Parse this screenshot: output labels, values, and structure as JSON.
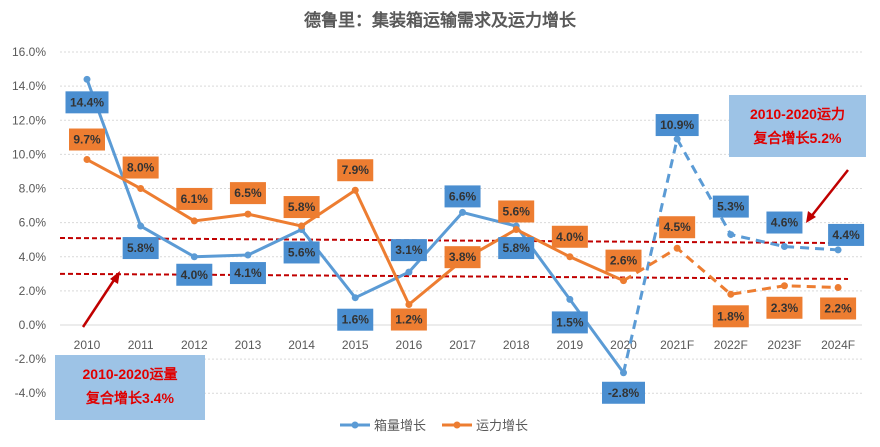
{
  "chart_data": {
    "type": "line",
    "title": "德鲁里：集装箱运输需求及运力增长",
    "categories": [
      "2010",
      "2011",
      "2012",
      "2013",
      "2014",
      "2015",
      "2016",
      "2017",
      "2018",
      "2019",
      "2020",
      "2021F",
      "2022F",
      "2023F",
      "2024F"
    ],
    "series": [
      {
        "name": "箱量增长",
        "color": "#5B9BD5",
        "label_bg": "#4A8ED0",
        "values": [
          14.4,
          5.8,
          4.0,
          4.1,
          5.6,
          1.6,
          3.1,
          6.6,
          5.8,
          1.5,
          -2.8,
          10.9,
          5.3,
          4.6,
          4.4
        ],
        "labels": [
          "14.4%",
          "5.8%",
          "4.0%",
          "4.1%",
          "5.6%",
          "1.6%",
          "3.1%",
          "6.6%",
          "5.8%",
          "1.5%",
          "-2.8%",
          "10.9%",
          "5.3%",
          "4.6%",
          "4.4%"
        ]
      },
      {
        "name": "运力增长",
        "color": "#ED7D31",
        "label_bg": "#ED7D31",
        "values": [
          9.7,
          8.0,
          6.1,
          6.5,
          5.8,
          7.9,
          1.2,
          3.8,
          5.6,
          4.0,
          2.6,
          4.5,
          1.8,
          2.3,
          2.2
        ],
        "labels": [
          "9.7%",
          "8.0%",
          "6.1%",
          "6.5%",
          "5.8%",
          "7.9%",
          "1.2%",
          "3.8%",
          "5.6%",
          "4.0%",
          "2.6%",
          "4.5%",
          "1.8%",
          "2.3%",
          "2.2%"
        ]
      }
    ],
    "forecast_from": "2020",
    "ylim": [
      -4,
      16
    ],
    "yticks": [
      "-4.0%",
      "-2.0%",
      "0.0%",
      "2.0%",
      "4.0%",
      "6.0%",
      "8.0%",
      "10.0%",
      "12.0%",
      "14.0%",
      "16.0%"
    ],
    "ytick_values": [
      -4,
      -2,
      0,
      2,
      4,
      6,
      8,
      10,
      12,
      14,
      16
    ],
    "grid": true,
    "legend_position": "bottom",
    "reference_lines": [
      {
        "from": 5.1,
        "to": 4.8,
        "color": "#C00000"
      },
      {
        "from": 3.0,
        "to": 2.7,
        "color": "#C00000"
      }
    ],
    "annotations": [
      {
        "lines": [
          "2010-2020运力",
          "复合增长5.2%"
        ],
        "bg": "#9DC3E6",
        "color": "#E00000"
      },
      {
        "lines": [
          "2010-2020运量",
          "复合增长3.4%"
        ],
        "bg": "#9DC3E6",
        "color": "#E00000"
      }
    ]
  }
}
